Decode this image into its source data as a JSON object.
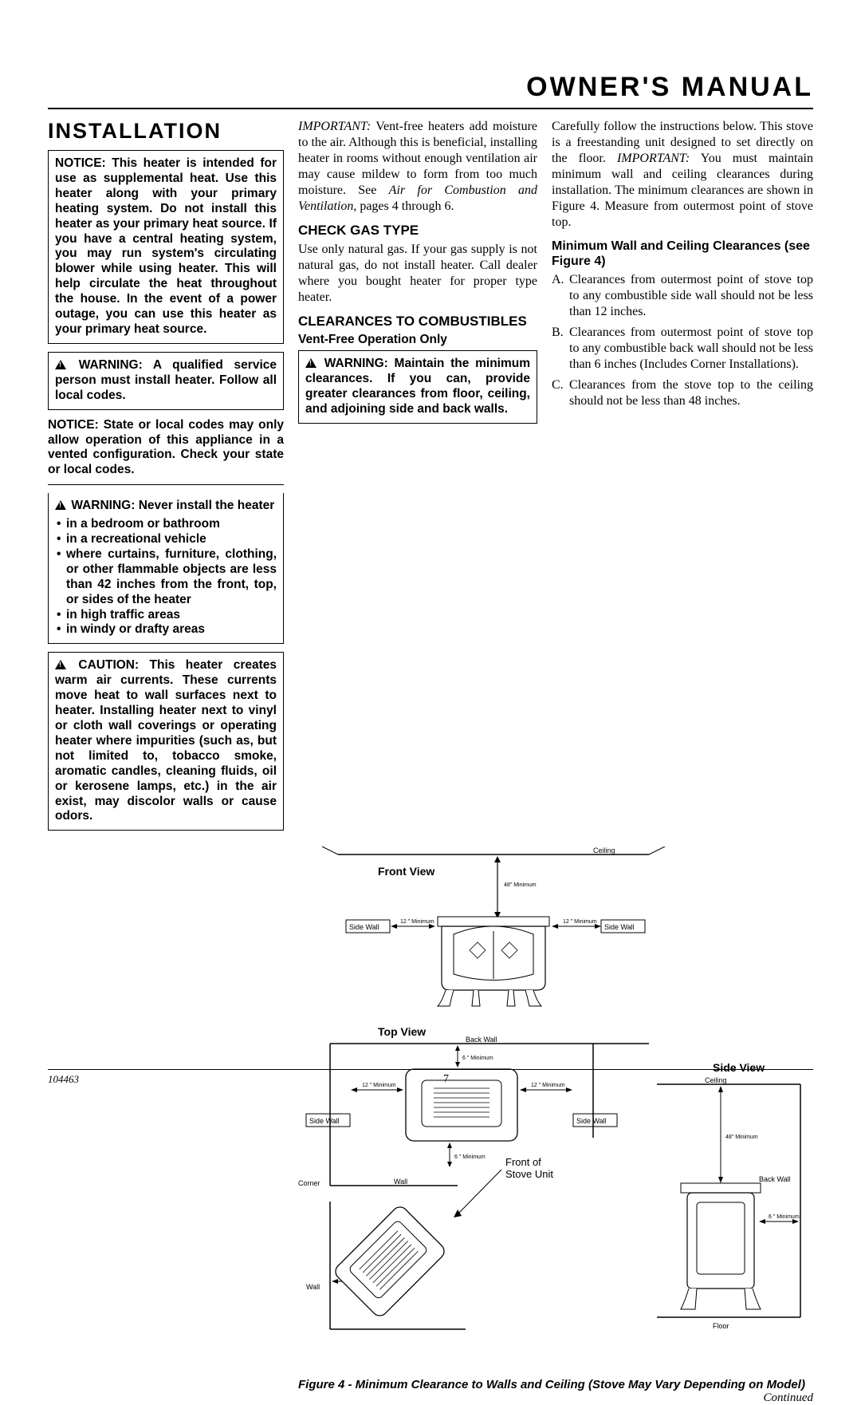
{
  "doc_title": "OWNER'S MANUAL",
  "section": "INSTALLATION",
  "left": {
    "notice1": "NOTICE: This heater is intended for use as supplemental heat. Use this heater along with your primary heating system. Do not install this heater as your primary heat source. If you have a central heating system, you may run system's circulating blower while using heater. This will help circulate the heat throughout the house. In the event of a power outage, you can use this heater as your primary heat source.",
    "warn1": "WARNING: A qualified service person must install heater. Follow all local codes.",
    "notice2": "NOTICE: State or local codes may only allow operation of this appliance in a vented configuration. Check your state or local codes.",
    "warn2_lead": "WARNING: Never install the heater",
    "warn2_bullets": [
      "in a bedroom or bathroom",
      "in a recreational vehicle",
      "where curtains, furniture, clothing, or other flammable objects are less than 42 inches from the front, top, or sides of the heater",
      "in high traffic areas",
      "in windy or drafty areas"
    ],
    "caution": "CAUTION: This heater creates warm air currents. These currents move heat to wall surfaces next to heater. Installing heater next to vinyl or cloth wall coverings or operating heater where impurities (such as, but not limited to, tobacco smoke, aromatic candles, cleaning fluids, oil or kerosene lamps, etc.) in the air exist, may discolor walls or cause odors."
  },
  "mid": {
    "important_label": "IMPORTANT:",
    "important_rest": " Vent-free heaters add moisture to the air. Although this is beneficial, installing heater in rooms without enough ventilation air may cause mildew to form from too much moisture. See ",
    "important_ref": "Air for Combustion and Ventilation",
    "important_tail": ", pages 4 through 6.",
    "check_head": "CHECK GAS TYPE",
    "check_body": "Use only natural gas. If your gas supply is not natural gas, do not install heater. Call dealer where you bought heater for proper type heater.",
    "clear_head": "CLEARANCES TO COMBUSTIBLES",
    "clear_sub": "Vent-Free Operation Only",
    "warn3": "WARNING: Maintain the minimum clearances. If you can, provide greater clearances from floor, ceiling, and adjoining side and back walls."
  },
  "right": {
    "p1_a": "Carefully follow the instructions below. This stove is a freestanding unit designed to set directly on the floor. ",
    "p1_imp": "IMPORTANT:",
    "p1_b": " You must maintain minimum wall and ceiling clearances during installation. The minimum clearances are shown in Figure 4. Measure from outermost point of stove top.",
    "min_head": "Minimum Wall and Ceiling Clearances (see Figure 4)",
    "items": [
      {
        "l": "A.",
        "t": "Clearances from outermost point of stove top to any combustible side wall should not be less than 12 inches."
      },
      {
        "l": "B.",
        "t": "Clearances from outermost point of stove top to any combustible back wall should not be less than 6 inches (Includes Corner Installations)."
      },
      {
        "l": "C.",
        "t": "Clearances from the stove top to the ceiling should not be less than 48 inches."
      }
    ]
  },
  "figure": {
    "front_view": "Front View",
    "top_view": "Top View",
    "side_view": "Side View",
    "ceiling": "Ceiling",
    "floor": "Floor",
    "side_wall": "Side Wall",
    "back_wall": "Back Wall",
    "corner": "Corner",
    "wall": "Wall",
    "front_unit": "Front of Stove Unit",
    "min48": "48\" Minimum",
    "min12": "12 \" Minimum",
    "min6": "6 \" Minimum",
    "caption": "Figure 4 - Minimum Clearance to Walls and Ceiling (Stove May Vary Depending on Model)",
    "continued": "Continued"
  },
  "footer": {
    "doc_id": "104463",
    "page": "7"
  },
  "colors": {
    "line": "#000000",
    "fill": "#ffffff"
  }
}
